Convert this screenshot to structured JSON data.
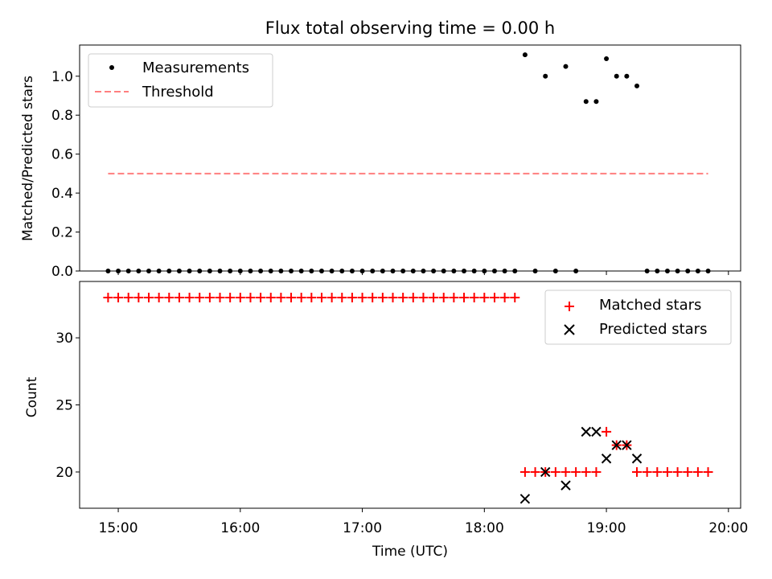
{
  "chart_data": [
    {
      "type": "scatter",
      "title": "Flux total observing time = 0.00 h",
      "xlabel": "",
      "ylabel": "Matched/Predicted stars",
      "ylim": [
        0,
        1.16
      ],
      "yticks": [
        0.0,
        0.2,
        0.4,
        0.6,
        0.8,
        1.0
      ],
      "ytick_labels": [
        "0.0",
        "0.2",
        "0.4",
        "0.6",
        "0.8",
        "1.0"
      ],
      "xlim": [
        "14:41",
        "20:06"
      ],
      "grid": false,
      "legend": "top-left",
      "series": [
        {
          "name": "Measurements",
          "marker": "dot",
          "color": "#000000",
          "x": [
            "14:55",
            "15:00",
            "15:05",
            "15:10",
            "15:15",
            "15:20",
            "15:25",
            "15:30",
            "15:35",
            "15:40",
            "15:45",
            "15:50",
            "15:55",
            "16:00",
            "16:05",
            "16:10",
            "16:15",
            "16:20",
            "16:25",
            "16:30",
            "16:35",
            "16:40",
            "16:45",
            "16:50",
            "16:55",
            "17:00",
            "17:05",
            "17:10",
            "17:15",
            "17:20",
            "17:25",
            "17:30",
            "17:35",
            "17:40",
            "17:45",
            "17:50",
            "17:55",
            "18:00",
            "18:05",
            "18:10",
            "18:15",
            "18:20",
            "18:25",
            "18:30",
            "18:35",
            "18:40",
            "18:45",
            "18:50",
            "18:55",
            "19:00",
            "19:05",
            "19:10",
            "19:15",
            "19:20",
            "19:25",
            "19:30",
            "19:35",
            "19:40",
            "19:45",
            "19:50"
          ],
          "y": [
            0,
            0,
            0,
            0,
            0,
            0,
            0,
            0,
            0,
            0,
            0,
            0,
            0,
            0,
            0,
            0,
            0,
            0,
            0,
            0,
            0,
            0,
            0,
            0,
            0,
            0,
            0,
            0,
            0,
            0,
            0,
            0,
            0,
            0,
            0,
            0,
            0,
            0,
            0,
            0,
            0,
            1.11,
            0,
            1.0,
            0,
            1.05,
            0,
            0.87,
            0.87,
            1.09,
            1.0,
            1.0,
            0.95,
            0,
            0,
            0,
            0,
            0,
            0,
            0
          ]
        },
        {
          "name": "Threshold",
          "marker": "dashed-line",
          "color": "#ff7f7f",
          "x": [
            "14:55",
            "19:50"
          ],
          "y": [
            0.5,
            0.5
          ]
        }
      ]
    },
    {
      "type": "scatter",
      "title": "",
      "xlabel": "Time (UTC)",
      "ylabel": "Count",
      "ylim": [
        17.3,
        34.2
      ],
      "yticks": [
        20,
        25,
        30
      ],
      "ytick_labels": [
        "20",
        "25",
        "30"
      ],
      "xlim": [
        "14:41",
        "20:06"
      ],
      "xticks": [
        "15:00",
        "16:00",
        "17:00",
        "18:00",
        "19:00",
        "20:00"
      ],
      "xtick_labels": [
        "15:00",
        "16:00",
        "17:00",
        "18:00",
        "19:00",
        "20:00"
      ],
      "grid": false,
      "legend": "top-right",
      "series": [
        {
          "name": "Matched stars",
          "marker": "plus",
          "color": "#ff0000",
          "x": [
            "14:55",
            "15:00",
            "15:05",
            "15:10",
            "15:15",
            "15:20",
            "15:25",
            "15:30",
            "15:35",
            "15:40",
            "15:45",
            "15:50",
            "15:55",
            "16:00",
            "16:05",
            "16:10",
            "16:15",
            "16:20",
            "16:25",
            "16:30",
            "16:35",
            "16:40",
            "16:45",
            "16:50",
            "16:55",
            "17:00",
            "17:05",
            "17:10",
            "17:15",
            "17:20",
            "17:25",
            "17:30",
            "17:35",
            "17:40",
            "17:45",
            "17:50",
            "17:55",
            "18:00",
            "18:05",
            "18:10",
            "18:15",
            "18:20",
            "18:25",
            "18:30",
            "18:35",
            "18:40",
            "18:45",
            "18:50",
            "18:55",
            "19:00",
            "19:05",
            "19:10",
            "19:15",
            "19:20",
            "19:25",
            "19:30",
            "19:35",
            "19:40",
            "19:45",
            "19:50"
          ],
          "y": [
            33,
            33,
            33,
            33,
            33,
            33,
            33,
            33,
            33,
            33,
            33,
            33,
            33,
            33,
            33,
            33,
            33,
            33,
            33,
            33,
            33,
            33,
            33,
            33,
            33,
            33,
            33,
            33,
            33,
            33,
            33,
            33,
            33,
            33,
            33,
            33,
            33,
            33,
            33,
            33,
            33,
            20,
            20,
            20,
            20,
            20,
            20,
            20,
            20,
            23,
            22,
            22,
            20,
            20,
            20,
            20,
            20,
            20,
            20,
            20
          ]
        },
        {
          "name": "Predicted stars",
          "marker": "x",
          "color": "#000000",
          "x": [
            "18:20",
            "18:30",
            "18:40",
            "18:50",
            "18:55",
            "19:00",
            "19:05",
            "19:10",
            "19:15"
          ],
          "y": [
            18,
            20,
            19,
            23,
            23,
            21,
            22,
            22,
            21
          ]
        }
      ]
    }
  ]
}
